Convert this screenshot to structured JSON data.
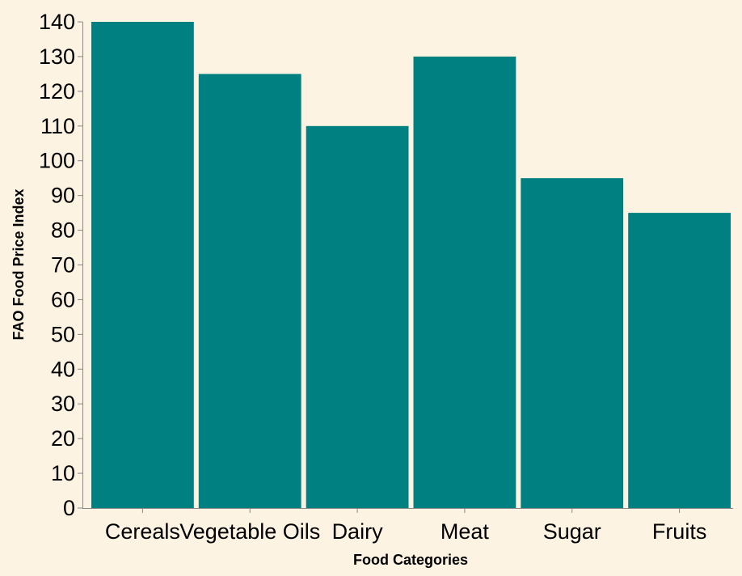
{
  "chart_data": {
    "type": "bar",
    "categories": [
      "Cereals",
      "Vegetable Oils",
      "Dairy",
      "Meat",
      "Sugar",
      "Fruits"
    ],
    "values": [
      140,
      125,
      110,
      130,
      95,
      85
    ],
    "xlabel": "Food Categories",
    "ylabel": "FAO Food Price Index",
    "ylim": [
      0,
      140
    ],
    "yticks": [
      0,
      10,
      20,
      30,
      40,
      50,
      60,
      70,
      80,
      90,
      100,
      110,
      120,
      130,
      140
    ],
    "grid": false,
    "bar_color": "#008080",
    "background_color": "#fdf3e3"
  }
}
